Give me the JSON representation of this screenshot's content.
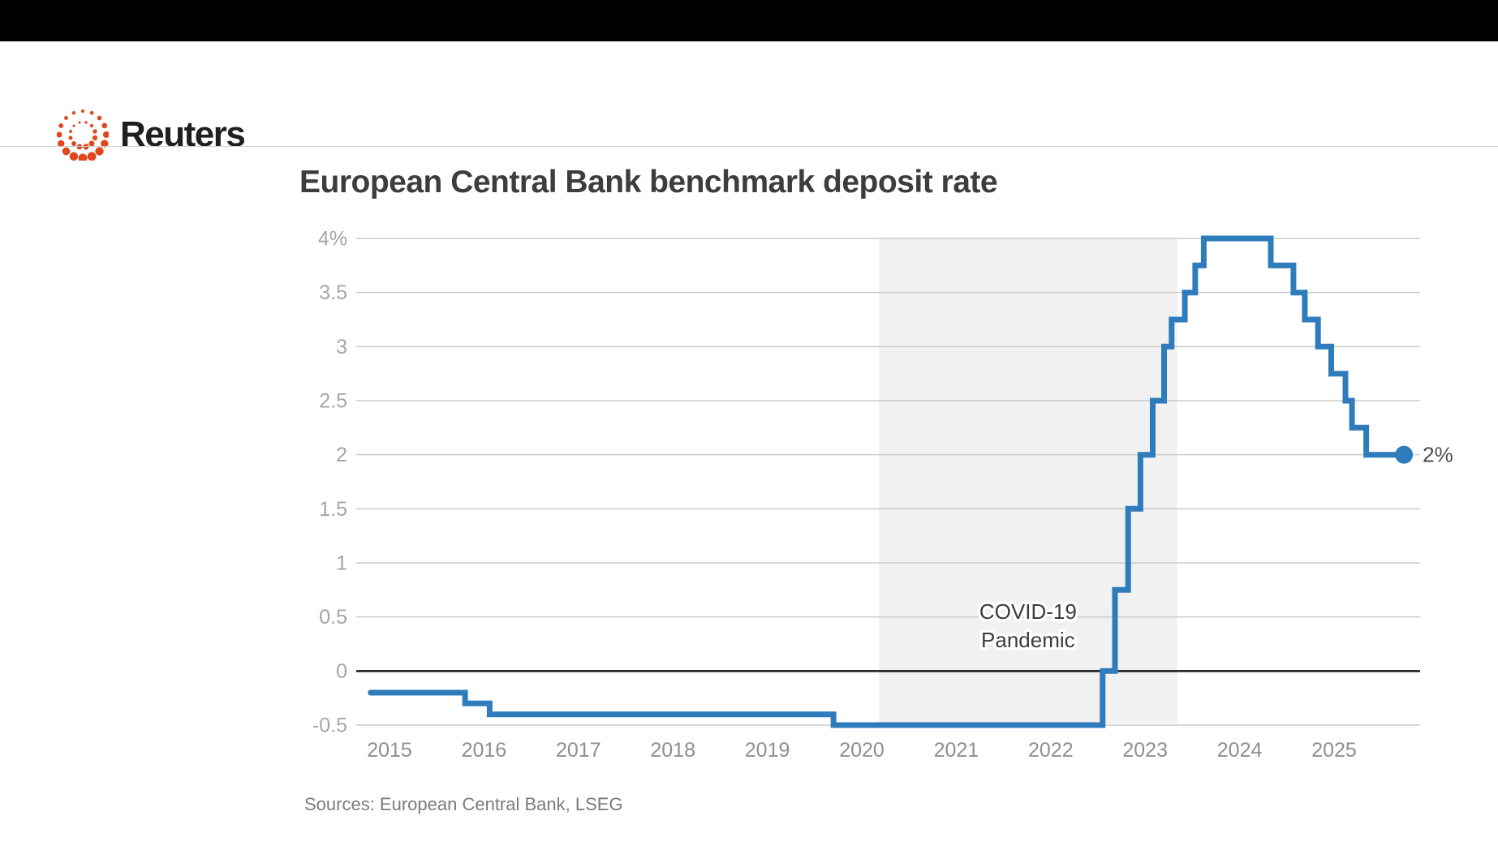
{
  "header": {
    "brand": "Reuters"
  },
  "chart": {
    "title": "European Central Bank benchmark deposit rate",
    "source": "Sources: European Central Bank, LSEG",
    "annotation": {
      "line1": "COVID-19",
      "line2": "Pandemic"
    },
    "end_label": "2%"
  },
  "chart_data": {
    "type": "line",
    "subtype": "step-after",
    "title": "European Central Bank benchmark deposit rate",
    "xlabel": "",
    "ylabel": "",
    "x": [
      2014.8,
      2015.8,
      2016.06,
      2019.7,
      2022.55,
      2022.68,
      2022.82,
      2022.95,
      2023.08,
      2023.2,
      2023.28,
      2023.42,
      2023.53,
      2023.62,
      2024.33,
      2024.57,
      2024.69,
      2024.83,
      2024.97,
      2025.12,
      2025.19,
      2025.34
    ],
    "y": [
      -0.2,
      -0.3,
      -0.4,
      -0.5,
      0.0,
      0.75,
      1.5,
      2.0,
      2.5,
      3.0,
      3.25,
      3.5,
      3.75,
      4.0,
      3.75,
      3.5,
      3.25,
      3.0,
      2.75,
      2.5,
      2.25,
      2.0
    ],
    "x_end": 2025.74,
    "end_point": {
      "x": 2025.74,
      "y": 2.0,
      "label": "2%"
    },
    "xlim": [
      2014.75,
      2025.95
    ],
    "ylim": [
      -0.5,
      4
    ],
    "x_ticks": [
      2015,
      2016,
      2017,
      2018,
      2019,
      2020,
      2021,
      2022,
      2023,
      2024,
      2025
    ],
    "y_ticks": [
      4,
      3.5,
      3,
      2.5,
      2,
      1.5,
      1,
      0.5,
      0,
      -0.5
    ],
    "y_tick_labels": [
      "4%",
      "3.5",
      "3",
      "2.5",
      "2",
      "1.5",
      "1",
      "0.5",
      "0",
      "-0.5"
    ],
    "grid": true,
    "legend": false,
    "shaded_region": {
      "label": "COVID-19 Pandemic",
      "x0": 2020.18,
      "x1": 2023.34
    }
  },
  "colors": {
    "line_blue": "#2F7CBC",
    "logo_orange": "#E0471D",
    "band_gray": "#F1F1F1",
    "grid_gray": "#CBCBCB",
    "zero_line": "#161616",
    "title_text": "#3D3D3D",
    "axis_text": "#8F8F8F",
    "ytick_text": "#A6A6A6",
    "annotation_text": "#3C3C3C",
    "end_label_text": "#4D4D4D",
    "source_text": "#7B7B7B",
    "topbar": "#000000"
  }
}
